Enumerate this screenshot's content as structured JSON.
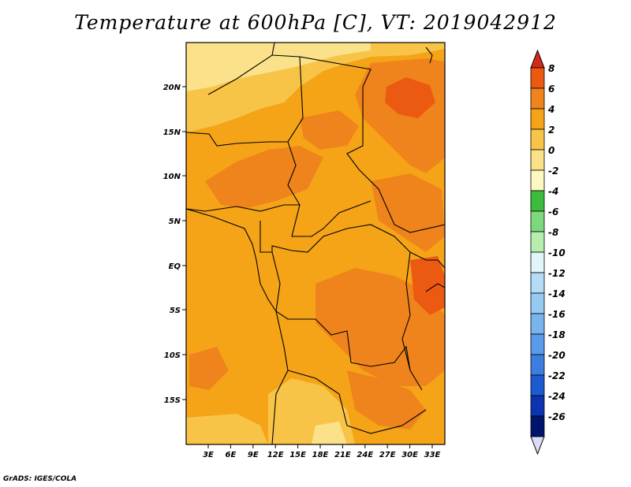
{
  "title": "Temperature at 600hPa [C], VT: 2019042912",
  "credit": "GrADS: IGES/COLA",
  "map": {
    "lat_labels": [
      "20N",
      "15N",
      "10N",
      "5N",
      "EQ",
      "5S",
      "10S",
      "15S"
    ],
    "lon_labels": [
      "3E",
      "6E",
      "9E",
      "12E",
      "15E",
      "18E",
      "21E",
      "24E",
      "27E",
      "30E",
      "33E"
    ],
    "colors": {
      "base": "#f5a418",
      "warm": "#f0841c",
      "hot": "#ec5a12",
      "pale": "#f8c448",
      "paler": "#fbe28a"
    }
  },
  "colorbar": {
    "labels": [
      "8",
      "6",
      "4",
      "2",
      "0",
      "-2",
      "-4",
      "-6",
      "-8",
      "-10",
      "-12",
      "-14",
      "-16",
      "-18",
      "-20",
      "-22",
      "-24",
      "-26"
    ],
    "colors": [
      "#d42a1a",
      "#ec5a12",
      "#f0841c",
      "#f5a418",
      "#f8c448",
      "#fbe28a",
      "#fdf8c0",
      "#3cbc3c",
      "#7ed87e",
      "#b6eeb0",
      "#e0f6f8",
      "#b4dcf6",
      "#96caf2",
      "#78b4ee",
      "#5a9aea",
      "#3c7ee0",
      "#1e5ad0",
      "#0a34b0",
      "#00146e",
      "#dcdcf8"
    ]
  }
}
